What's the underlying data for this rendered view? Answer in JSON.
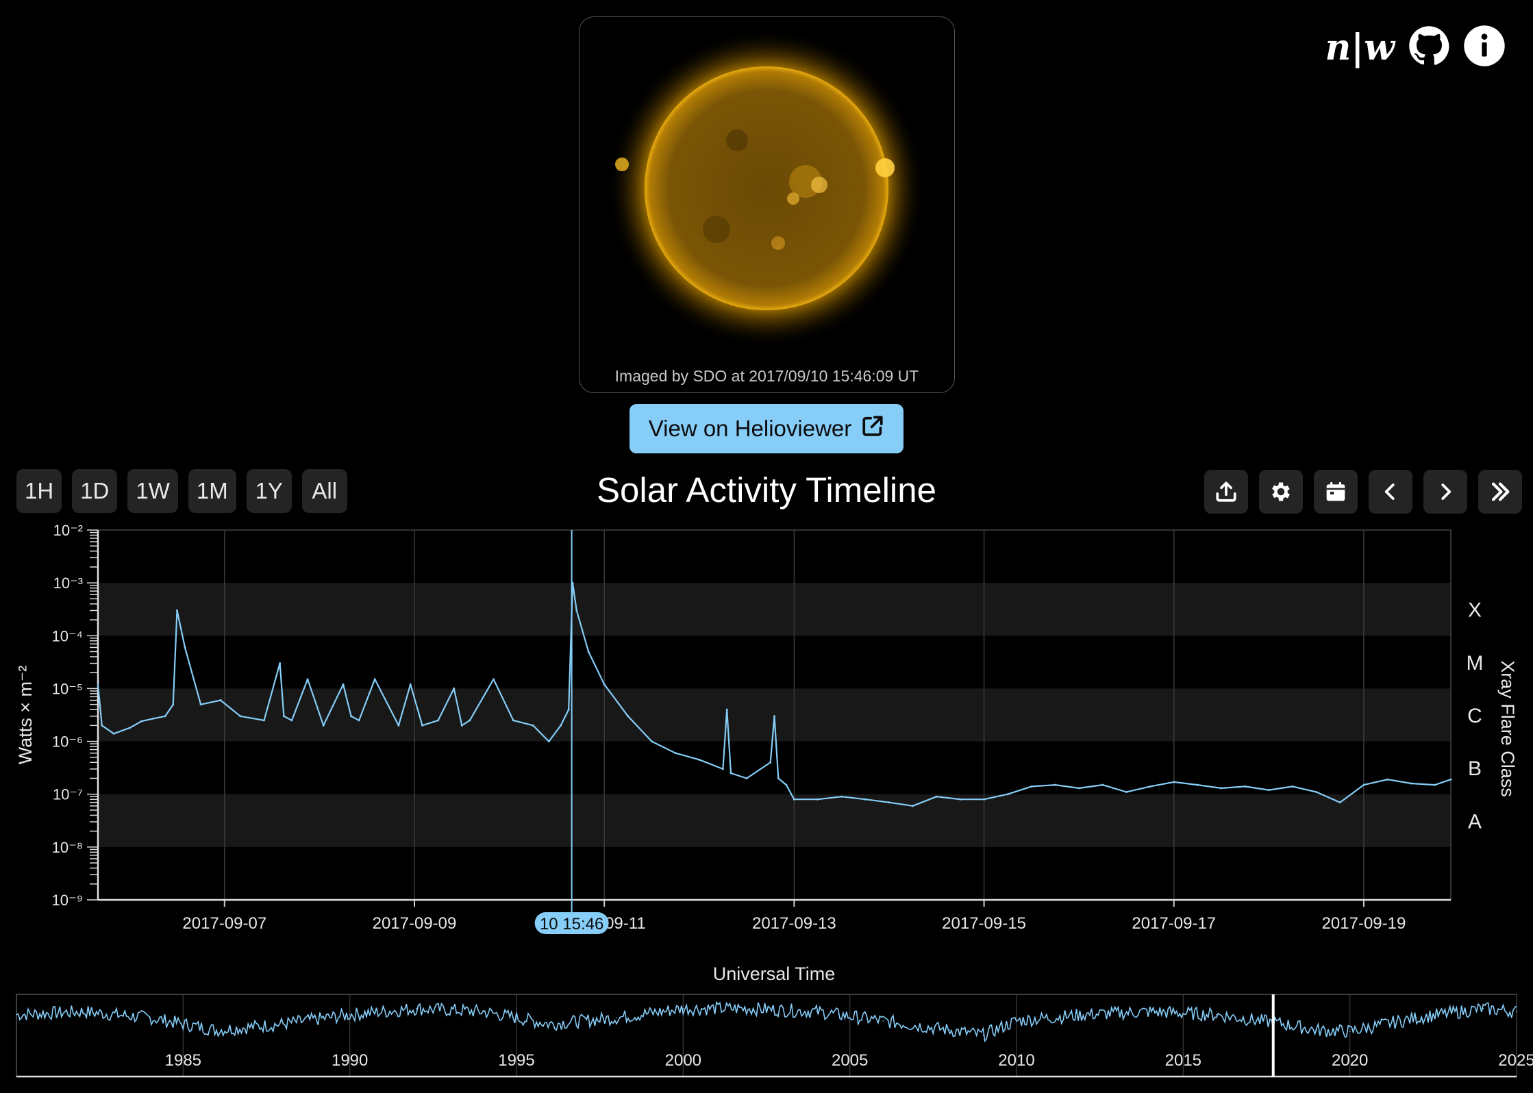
{
  "header": {
    "logo_text": "n|w",
    "github_icon": "github-icon",
    "info_icon": "info-icon"
  },
  "image": {
    "caption": "Imaged by SDO at 2017/09/10 15:46:09 UT",
    "subject": "sun",
    "accent": "#e0a000"
  },
  "helioviewer": {
    "label": "View on Helioviewer",
    "icon": "external-link-icon",
    "color": "#86cdf8"
  },
  "ranges": [
    "1H",
    "1D",
    "1W",
    "1M",
    "1Y",
    "All"
  ],
  "title": "Solar Activity Timeline",
  "tools": [
    "upload-icon",
    "gear-icon",
    "calendar-icon",
    "chevron-left-icon",
    "chevron-right-icon",
    "double-chevron-right-icon"
  ],
  "chart_data": [
    {
      "type": "line",
      "ylabel": "Watts × m⁻²",
      "y2label": "Xray Flare Class",
      "xlabel": "Universal Time",
      "yscale": "log",
      "ylim": [
        1e-09,
        0.01
      ],
      "yticks": [
        "10⁻²",
        "10⁻³",
        "10⁻⁴",
        "10⁻⁵",
        "10⁻⁶",
        "10⁻⁷",
        "10⁻⁸",
        "10⁻⁹"
      ],
      "xlim": [
        "2017-09-05 16:00",
        "2017-09-19 22:00"
      ],
      "xticks": [
        "2017-09-07",
        "2017-09-09",
        "2017-09-11",
        "2017-09-13",
        "2017-09-15",
        "2017-09-17",
        "2017-09-19"
      ],
      "flare_classes": [
        "X",
        "M",
        "C",
        "B",
        "A"
      ],
      "cursor_label": "10 15:46",
      "cursor_time": "2017-09-10 15:46",
      "line_color": "#86cdf8",
      "series": [
        {
          "x": [
            "2017-09-05 16:00",
            "2017-09-05 17:00",
            "2017-09-05 20:00",
            "2017-09-06 00:00",
            "2017-09-06 03:00",
            "2017-09-06 06:00",
            "2017-09-06 09:00",
            "2017-09-06 11:00",
            "2017-09-06 12:00",
            "2017-09-06 14:00",
            "2017-09-06 18:00",
            "2017-09-06 23:00",
            "2017-09-07 04:00",
            "2017-09-07 10:00",
            "2017-09-07 14:00",
            "2017-09-07 15:00",
            "2017-09-07 17:00",
            "2017-09-07 21:00",
            "2017-09-08 01:00",
            "2017-09-08 06:00",
            "2017-09-08 08:00",
            "2017-09-08 10:00",
            "2017-09-08 14:00",
            "2017-09-08 20:00",
            "2017-09-08 23:00",
            "2017-09-09 02:00",
            "2017-09-09 06:00",
            "2017-09-09 10:00",
            "2017-09-09 12:00",
            "2017-09-09 14:00",
            "2017-09-09 20:00",
            "2017-09-10 01:00",
            "2017-09-10 06:00",
            "2017-09-10 10:00",
            "2017-09-10 13:00",
            "2017-09-10 15:00",
            "2017-09-10 16:00",
            "2017-09-10 17:00",
            "2017-09-10 20:00",
            "2017-09-11 00:00",
            "2017-09-11 06:00",
            "2017-09-11 12:00",
            "2017-09-11 18:00",
            "2017-09-12 00:00",
            "2017-09-12 06:00",
            "2017-09-12 07:00",
            "2017-09-12 08:00",
            "2017-09-12 12:00",
            "2017-09-12 18:00",
            "2017-09-12 19:00",
            "2017-09-12 20:00",
            "2017-09-12 22:00",
            "2017-09-13 00:00",
            "2017-09-13 06:00",
            "2017-09-13 12:00",
            "2017-09-13 18:00",
            "2017-09-14 00:00",
            "2017-09-14 06:00",
            "2017-09-14 12:00",
            "2017-09-14 18:00",
            "2017-09-15 00:00",
            "2017-09-15 06:00",
            "2017-09-15 12:00",
            "2017-09-15 18:00",
            "2017-09-16 00:00",
            "2017-09-16 06:00",
            "2017-09-16 12:00",
            "2017-09-16 18:00",
            "2017-09-17 00:00",
            "2017-09-17 06:00",
            "2017-09-17 12:00",
            "2017-09-17 18:00",
            "2017-09-18 00:00",
            "2017-09-18 06:00",
            "2017-09-18 12:00",
            "2017-09-18 18:00",
            "2017-09-19 00:00",
            "2017-09-19 06:00",
            "2017-09-19 12:00",
            "2017-09-19 18:00",
            "2017-09-19 22:00"
          ],
          "y": [
            1.2e-05,
            2e-06,
            1.4e-06,
            1.8e-06,
            2.4e-06,
            2.7e-06,
            3e-06,
            5e-06,
            0.0003,
            6e-05,
            5e-06,
            6e-06,
            3e-06,
            2.5e-06,
            3e-05,
            3e-06,
            2.5e-06,
            1.5e-05,
            2e-06,
            1.2e-05,
            3e-06,
            2.5e-06,
            1.5e-05,
            2e-06,
            1.2e-05,
            2e-06,
            2.5e-06,
            1e-05,
            2e-06,
            2.5e-06,
            1.5e-05,
            2.5e-06,
            2e-06,
            1e-06,
            2e-06,
            4e-06,
            0.001,
            0.0003,
            5e-05,
            1.2e-05,
            3e-06,
            1e-06,
            6e-07,
            4.5e-07,
            3e-07,
            4e-06,
            2.5e-07,
            2e-07,
            4e-07,
            3e-06,
            2e-07,
            1.5e-07,
            8e-08,
            8e-08,
            9e-08,
            8e-08,
            7e-08,
            6e-08,
            9e-08,
            8e-08,
            8e-08,
            1e-07,
            1.4e-07,
            1.5e-07,
            1.3e-07,
            1.5e-07,
            1.1e-07,
            1.4e-07,
            1.7e-07,
            1.5e-07,
            1.3e-07,
            1.4e-07,
            1.2e-07,
            1.4e-07,
            1.1e-07,
            7e-08,
            1.5e-07,
            1.9e-07,
            1.6e-07,
            1.5e-07,
            1.9e-07
          ]
        }
      ]
    },
    {
      "type": "line",
      "xlim": [
        1980,
        2025
      ],
      "xticks": [
        "1985",
        "1990",
        "1995",
        "2000",
        "2005",
        "2010",
        "2015",
        "2020",
        "2025"
      ],
      "selection": 2017.7,
      "line_color": "#86cdf8",
      "series": [
        {
          "x": [
            1980,
            1982,
            1984,
            1986,
            1988,
            1990,
            1992,
            1994,
            1996,
            1998,
            2000,
            2002,
            2004,
            2006,
            2008,
            2009,
            2010,
            2012,
            2014,
            2016,
            2018,
            2019,
            2020,
            2022,
            2024,
            2025
          ],
          "y": [
            0.45,
            0.5,
            0.4,
            0.2,
            0.3,
            0.45,
            0.55,
            0.5,
            0.3,
            0.4,
            0.55,
            0.55,
            0.5,
            0.35,
            0.2,
            0.12,
            0.35,
            0.45,
            0.5,
            0.45,
            0.3,
            0.2,
            0.18,
            0.4,
            0.55,
            0.5
          ]
        }
      ]
    }
  ]
}
